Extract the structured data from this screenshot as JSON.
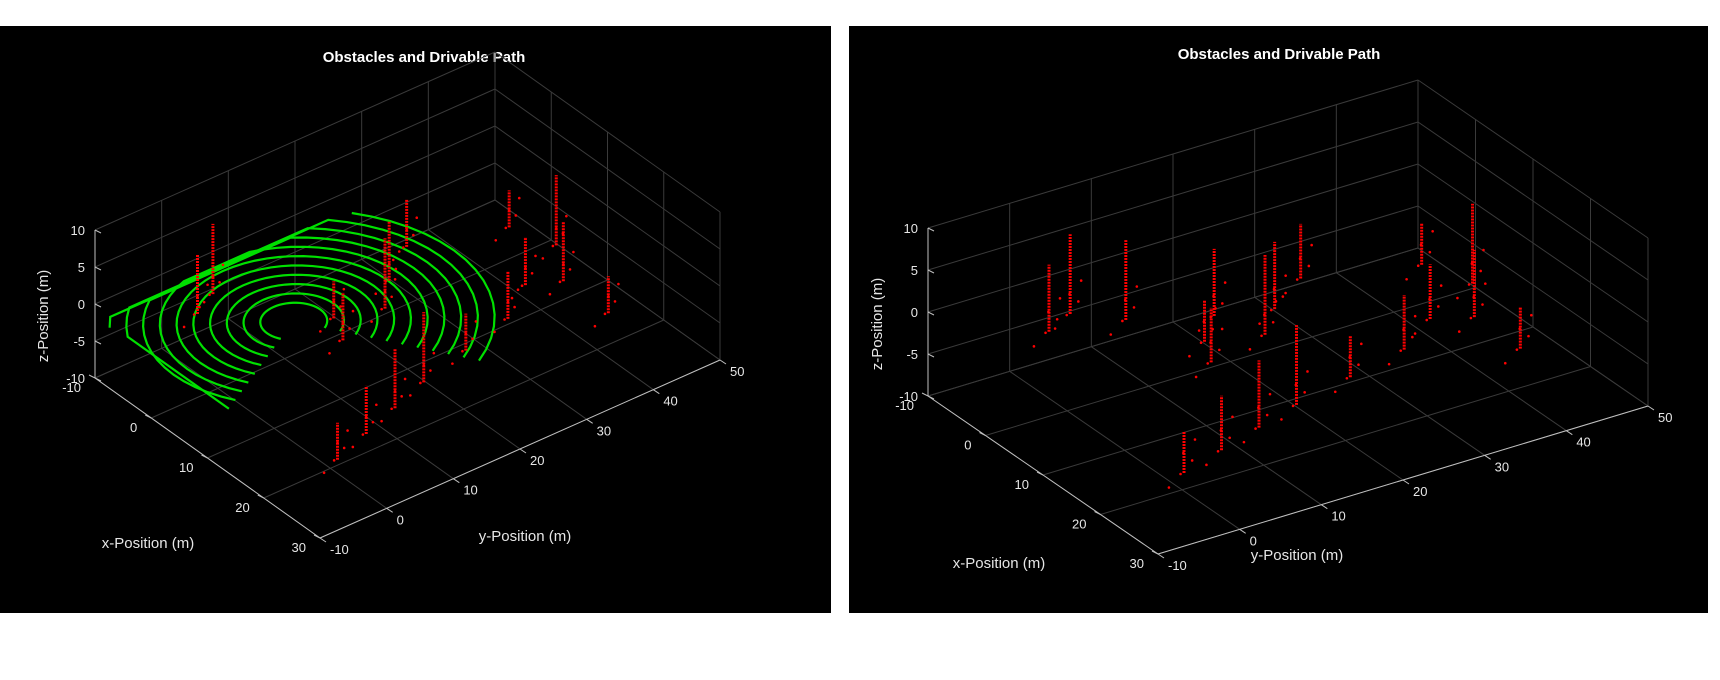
{
  "chart_data": [
    {
      "type": "scatter",
      "title": "Obstacles and Drivable Path",
      "xlabel": "x-Position (m)",
      "ylabel": "y-Position (m)",
      "zlabel": "z-Position (m)",
      "xlim": [
        -10,
        30
      ],
      "ylim": [
        -10,
        50
      ],
      "zlim": [
        -10,
        10
      ],
      "xticks": [
        30,
        20,
        10,
        0,
        -10
      ],
      "yticks": [
        -10,
        0,
        10,
        20,
        30,
        40,
        50
      ],
      "zticks": [
        10,
        5,
        0,
        -5,
        -10
      ],
      "grid": true,
      "series": [
        {
          "color": "#00e000",
          "rings": [
            4,
            6,
            8,
            10,
            12,
            14,
            16,
            18,
            20,
            22,
            24
          ],
          "z": -2
        },
        {
          "color": "#ff0000",
          "obstacles": [
            [
              26,
              -4
            ],
            [
              24,
              2
            ],
            [
              22,
              8
            ],
            [
              20,
              14
            ],
            [
              18,
              22
            ],
            [
              16,
              30
            ],
            [
              14,
              40
            ],
            [
              8,
              44
            ],
            [
              2,
              42
            ],
            [
              -2,
              30
            ],
            [
              2,
              24
            ],
            [
              6,
              20
            ],
            [
              4,
              14
            ],
            [
              8,
              12
            ],
            [
              -6,
              2
            ],
            [
              -8,
              6
            ],
            [
              22,
              40
            ],
            [
              12,
              36
            ]
          ]
        }
      ]
    },
    {
      "type": "scatter",
      "title": "Obstacles and Drivable Path",
      "xlabel": "x-Position (m)",
      "ylabel": "y-Position (m)",
      "zlabel": "z-Position (m)",
      "xlim": [
        -10,
        30
      ],
      "ylim": [
        -10,
        50
      ],
      "zlim": [
        -10,
        10
      ],
      "xticks": [
        30,
        20,
        10,
        0,
        -10
      ],
      "yticks": [
        -10,
        0,
        10,
        20,
        30,
        40,
        50
      ],
      "zticks": [
        10,
        5,
        0,
        -5,
        -10
      ],
      "grid": true,
      "series": [
        {
          "color": "#ff0000",
          "obstacles": [
            [
              26,
              -4
            ],
            [
              24,
              2
            ],
            [
              22,
              8
            ],
            [
              20,
              14
            ],
            [
              18,
              22
            ],
            [
              16,
              30
            ],
            [
              14,
              40
            ],
            [
              8,
              44
            ],
            [
              2,
              42
            ],
            [
              -2,
              30
            ],
            [
              2,
              24
            ],
            [
              6,
              20
            ],
            [
              4,
              14
            ],
            [
              8,
              12
            ],
            [
              -6,
              2
            ],
            [
              -8,
              6
            ],
            [
              22,
              40
            ],
            [
              12,
              36
            ],
            [
              0,
              18
            ],
            [
              -4,
              10
            ]
          ]
        }
      ]
    }
  ]
}
